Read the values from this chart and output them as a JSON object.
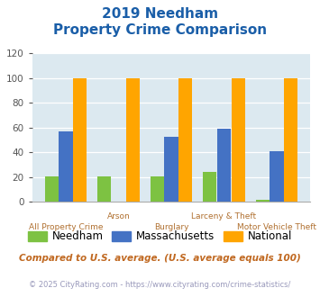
{
  "title_line1": "2019 Needham",
  "title_line2": "Property Crime Comparison",
  "categories": [
    "All Property Crime",
    "Arson",
    "Burglary",
    "Larceny & Theft",
    "Motor Vehicle Theft"
  ],
  "needham": [
    21,
    21,
    21,
    24,
    2
  ],
  "massachusetts": [
    57,
    0,
    53,
    59,
    41
  ],
  "national": [
    100,
    100,
    100,
    100,
    100
  ],
  "colors": {
    "needham": "#7dc242",
    "massachusetts": "#4472c4",
    "national": "#ffa500"
  },
  "ylim": [
    0,
    120
  ],
  "yticks": [
    0,
    20,
    40,
    60,
    80,
    100,
    120
  ],
  "bg_color": "#dce9f0",
  "legend_labels": [
    "Needham",
    "Massachusetts",
    "National"
  ],
  "footnote1": "Compared to U.S. average. (U.S. average equals 100)",
  "footnote2": "© 2025 CityRating.com - https://www.cityrating.com/crime-statistics/",
  "title_color": "#1a5ea8",
  "xlabel_color": "#b07030",
  "footnote1_color": "#c06820",
  "footnote2_color": "#9999bb",
  "label_top": [
    "",
    "Arson",
    "",
    "Larceny & Theft",
    ""
  ],
  "label_bot": [
    "All Property Crime",
    "",
    "Burglary",
    "",
    "Motor Vehicle Theft"
  ]
}
